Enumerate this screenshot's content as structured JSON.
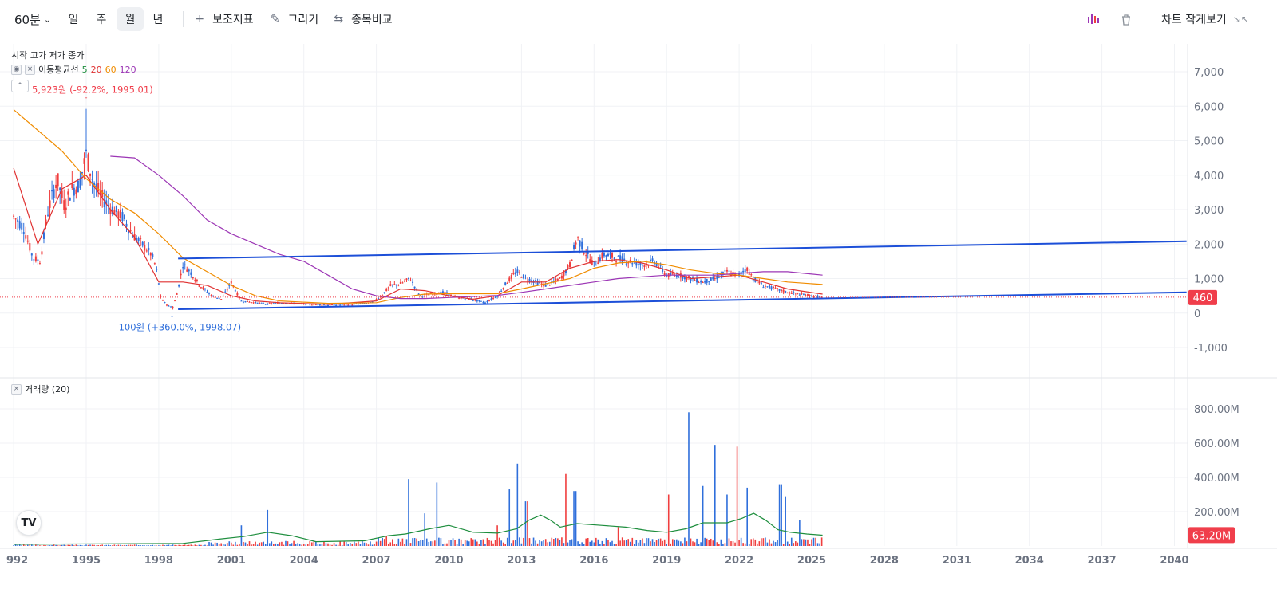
{
  "toolbar": {
    "interval": "60분",
    "periods": [
      "일",
      "주",
      "월",
      "년"
    ],
    "active_period": "월",
    "indicators_label": "보조지표",
    "draw_label": "그리기",
    "compare_label": "종목비교",
    "minimize_label": "차트 작게보기"
  },
  "legend": {
    "ohlc_label": "시작 고가 저가 종가",
    "ma_label": "이동평균선",
    "ma_periods": [
      "5",
      "20",
      "60",
      "120"
    ],
    "ma_colors": [
      "#1e8e3e",
      "#e03131",
      "#f08c00",
      "#9c36b5"
    ],
    "volume_label": "거래량 (20)"
  },
  "annotations": {
    "high_label": "5,923원 (-92.2%, 1995.01)",
    "low_label": "100원 (+360.0%, 1998.07)"
  },
  "colors": {
    "up": "#f03e3e",
    "down": "#2f6fdb",
    "trendline": "#1c4fd8",
    "price_badge": "#f03e4b",
    "volume_ma": "#1e8e3e"
  },
  "logo_text": "TV",
  "chart_data": {
    "type": "candlestick",
    "x_ticks": [
      "992",
      "1995",
      "1998",
      "2001",
      "2004",
      "2007",
      "2010",
      "2013",
      "2016",
      "2019",
      "2022",
      "2025",
      "2028",
      "2031",
      "2034",
      "2037",
      "2040"
    ],
    "price_axis": {
      "ticks": [
        -1000,
        0,
        1000,
        2000,
        3000,
        4000,
        5000,
        6000,
        7000
      ],
      "tick_labels": [
        "-1,000",
        "0",
        "1,000",
        "2,000",
        "3,000",
        "4,000",
        "5,000",
        "6,000",
        "7,000"
      ],
      "range": [
        -1300,
        7400
      ]
    },
    "volume_axis": {
      "ticks": [
        200,
        400,
        600,
        800
      ],
      "tick_labels": [
        "200.00M",
        "400.00M",
        "600.00M",
        "800.00M"
      ],
      "range": [
        0,
        980
      ]
    },
    "last_price": 460,
    "last_price_label": "460",
    "last_volume_label": "63.20M",
    "price_path": [
      [
        1992.0,
        2800
      ],
      [
        1992.4,
        2500
      ],
      [
        1992.8,
        1600
      ],
      [
        1993.1,
        1500
      ],
      [
        1993.4,
        2900
      ],
      [
        1993.8,
        3900
      ],
      [
        1994.1,
        3100
      ],
      [
        1994.4,
        3600
      ],
      [
        1994.7,
        3700
      ],
      [
        1995.0,
        4600
      ],
      [
        1995.3,
        3800
      ],
      [
        1995.7,
        3300
      ],
      [
        1996.1,
        3000
      ],
      [
        1996.5,
        2800
      ],
      [
        1996.9,
        2300
      ],
      [
        1997.3,
        2000
      ],
      [
        1997.7,
        1700
      ],
      [
        1997.9,
        1300
      ],
      [
        1998.1,
        400
      ],
      [
        1998.4,
        200
      ],
      [
        1998.6,
        180
      ],
      [
        1998.8,
        700
      ],
      [
        1999.0,
        1400
      ],
      [
        1999.3,
        1200
      ],
      [
        1999.7,
        800
      ],
      [
        2000.2,
        500
      ],
      [
        2000.6,
        400
      ],
      [
        2001.0,
        900
      ],
      [
        2001.4,
        350
      ],
      [
        2002.0,
        300
      ],
      [
        2002.5,
        260
      ],
      [
        2003.0,
        300
      ],
      [
        2004.0,
        260
      ],
      [
        2005.0,
        230
      ],
      [
        2006.0,
        250
      ],
      [
        2006.8,
        300
      ],
      [
        2007.2,
        500
      ],
      [
        2007.6,
        800
      ],
      [
        2008.0,
        850
      ],
      [
        2008.4,
        1000
      ],
      [
        2008.8,
        500
      ],
      [
        2009.3,
        550
      ],
      [
        2009.8,
        600
      ],
      [
        2010.3,
        450
      ],
      [
        2010.9,
        400
      ],
      [
        2011.5,
        300
      ],
      [
        2012.0,
        500
      ],
      [
        2012.4,
        900
      ],
      [
        2012.8,
        1200
      ],
      [
        2013.2,
        1000
      ],
      [
        2013.6,
        900
      ],
      [
        2014.0,
        800
      ],
      [
        2014.6,
        1000
      ],
      [
        2015.0,
        1400
      ],
      [
        2015.3,
        2200
      ],
      [
        2015.6,
        1800
      ],
      [
        2016.0,
        1400
      ],
      [
        2016.4,
        1700
      ],
      [
        2016.9,
        1600
      ],
      [
        2017.5,
        1500
      ],
      [
        2018.0,
        1400
      ],
      [
        2018.5,
        1500
      ],
      [
        2019.0,
        1100
      ],
      [
        2019.5,
        1100
      ],
      [
        2020.0,
        1000
      ],
      [
        2020.5,
        900
      ],
      [
        2021.0,
        1000
      ],
      [
        2021.5,
        1200
      ],
      [
        2022.0,
        1100
      ],
      [
        2022.3,
        1300
      ],
      [
        2022.6,
        1000
      ],
      [
        2023.0,
        800
      ],
      [
        2023.5,
        700
      ],
      [
        2024.0,
        600
      ],
      [
        2024.5,
        550
      ],
      [
        2025.0,
        500
      ],
      [
        2025.45,
        460
      ]
    ],
    "candle_years": [
      1992,
      2025.45
    ],
    "annotated_high": {
      "x": 1995.0,
      "y": 5923
    },
    "annotated_low": {
      "x": 1998.55,
      "y": 100
    },
    "series": [
      {
        "name": "5",
        "color": "#1e8e3e"
      },
      {
        "name": "20",
        "values": [
          [
            1992.0,
            4200
          ],
          [
            1993.0,
            2000
          ],
          [
            1994.0,
            3600
          ],
          [
            1995.0,
            4000
          ],
          [
            1996.0,
            3000
          ],
          [
            1997.0,
            2200
          ],
          [
            1998.0,
            900
          ],
          [
            1999.0,
            900
          ],
          [
            2000.0,
            800
          ],
          [
            2001.0,
            500
          ],
          [
            2002.0,
            350
          ],
          [
            2003.0,
            300
          ],
          [
            2005.0,
            250
          ],
          [
            2007.0,
            350
          ],
          [
            2008.0,
            700
          ],
          [
            2009.0,
            650
          ],
          [
            2010.0,
            500
          ],
          [
            2011.0,
            400
          ],
          [
            2012.0,
            500
          ],
          [
            2013.0,
            900
          ],
          [
            2014.0,
            900
          ],
          [
            2015.0,
            1300
          ],
          [
            2016.0,
            1500
          ],
          [
            2017.0,
            1550
          ],
          [
            2018.0,
            1450
          ],
          [
            2019.0,
            1250
          ],
          [
            2020.0,
            1000
          ],
          [
            2021.0,
            1050
          ],
          [
            2022.0,
            1100
          ],
          [
            2023.0,
            900
          ],
          [
            2024.0,
            700
          ],
          [
            2025.45,
            550
          ]
        ],
        "color": "#e03131"
      },
      {
        "name": "60",
        "values": [
          [
            1992.0,
            5900
          ],
          [
            1993.0,
            5300
          ],
          [
            1994.0,
            4700
          ],
          [
            1995.0,
            3900
          ],
          [
            1996.0,
            3300
          ],
          [
            1997.0,
            2900
          ],
          [
            1998.0,
            2300
          ],
          [
            1999.0,
            1600
          ],
          [
            2000.0,
            1200
          ],
          [
            2001.0,
            800
          ],
          [
            2002.0,
            500
          ],
          [
            2003.0,
            350
          ],
          [
            2005.0,
            280
          ],
          [
            2007.0,
            300
          ],
          [
            2008.0,
            450
          ],
          [
            2009.0,
            550
          ],
          [
            2010.0,
            560
          ],
          [
            2011.0,
            560
          ],
          [
            2012.0,
            560
          ],
          [
            2013.0,
            700
          ],
          [
            2014.0,
            850
          ],
          [
            2015.0,
            1000
          ],
          [
            2016.0,
            1300
          ],
          [
            2017.0,
            1450
          ],
          [
            2018.0,
            1500
          ],
          [
            2019.0,
            1400
          ],
          [
            2020.0,
            1250
          ],
          [
            2021.0,
            1150
          ],
          [
            2022.0,
            1100
          ],
          [
            2023.0,
            1000
          ],
          [
            2024.0,
            900
          ],
          [
            2025.45,
            830
          ]
        ],
        "color": "#f08c00"
      },
      {
        "name": "120",
        "values": [
          [
            1996.0,
            4550
          ],
          [
            1997.0,
            4500
          ],
          [
            1998.0,
            4000
          ],
          [
            1999.0,
            3400
          ],
          [
            2000.0,
            2700
          ],
          [
            2001.0,
            2300
          ],
          [
            2002.0,
            2000
          ],
          [
            2003.0,
            1700
          ],
          [
            2004.0,
            1500
          ],
          [
            2005.0,
            1100
          ],
          [
            2006.0,
            700
          ],
          [
            2007.0,
            500
          ],
          [
            2008.0,
            420
          ],
          [
            2009.0,
            420
          ],
          [
            2010.0,
            450
          ],
          [
            2011.0,
            480
          ],
          [
            2012.0,
            510
          ],
          [
            2013.0,
            600
          ],
          [
            2014.0,
            700
          ],
          [
            2015.0,
            800
          ],
          [
            2016.0,
            900
          ],
          [
            2017.0,
            1000
          ],
          [
            2018.0,
            1050
          ],
          [
            2019.0,
            1100
          ],
          [
            2020.0,
            1100
          ],
          [
            2021.0,
            1100
          ],
          [
            2022.0,
            1150
          ],
          [
            2023.0,
            1200
          ],
          [
            2024.0,
            1200
          ],
          [
            2025.45,
            1100
          ]
        ],
        "color": "#9c36b5"
      }
    ],
    "trendlines": [
      {
        "from": [
          1998.8,
          1580
        ],
        "to": [
          2040.5,
          2080
        ]
      },
      {
        "from": [
          1998.8,
          110
        ],
        "to": [
          2040.5,
          600
        ]
      }
    ],
    "volume_peaks": [
      [
        2001.4,
        120
      ],
      [
        2002.5,
        210
      ],
      [
        2007.4,
        60
      ],
      [
        2008.3,
        390
      ],
      [
        2009.0,
        190
      ],
      [
        2009.5,
        370
      ],
      [
        2012.0,
        120
      ],
      [
        2012.5,
        330
      ],
      [
        2012.8,
        480
      ],
      [
        2013.2,
        260
      ],
      [
        2014.8,
        420
      ],
      [
        2015.2,
        320
      ],
      [
        2017.0,
        110
      ],
      [
        2019.1,
        300
      ],
      [
        2019.9,
        780
      ],
      [
        2020.5,
        350
      ],
      [
        2021.0,
        590
      ],
      [
        2021.5,
        300
      ],
      [
        2021.9,
        580
      ],
      [
        2022.3,
        340
      ],
      [
        2023.7,
        360
      ],
      [
        2023.9,
        290
      ],
      [
        2024.5,
        150
      ]
    ],
    "volume_ma": [
      [
        1992.0,
        10
      ],
      [
        1999.0,
        15
      ],
      [
        2000.5,
        40
      ],
      [
        2001.5,
        55
      ],
      [
        2002.5,
        80
      ],
      [
        2003.5,
        60
      ],
      [
        2004.5,
        25
      ],
      [
        2006.5,
        30
      ],
      [
        2007.5,
        60
      ],
      [
        2008.2,
        70
      ],
      [
        2009.2,
        100
      ],
      [
        2010.0,
        120
      ],
      [
        2011.0,
        80
      ],
      [
        2012.0,
        75
      ],
      [
        2012.8,
        100
      ],
      [
        2013.3,
        150
      ],
      [
        2013.8,
        180
      ],
      [
        2014.2,
        150
      ],
      [
        2014.6,
        110
      ],
      [
        2015.3,
        130
      ],
      [
        2016.3,
        120
      ],
      [
        2017.3,
        110
      ],
      [
        2018.2,
        90
      ],
      [
        2019.0,
        80
      ],
      [
        2019.8,
        100
      ],
      [
        2020.5,
        135
      ],
      [
        2021.5,
        135
      ],
      [
        2022.1,
        160
      ],
      [
        2022.6,
        190
      ],
      [
        2023.1,
        150
      ],
      [
        2023.6,
        95
      ],
      [
        2024.1,
        80
      ],
      [
        2024.8,
        70
      ],
      [
        2025.45,
        63
      ]
    ]
  }
}
